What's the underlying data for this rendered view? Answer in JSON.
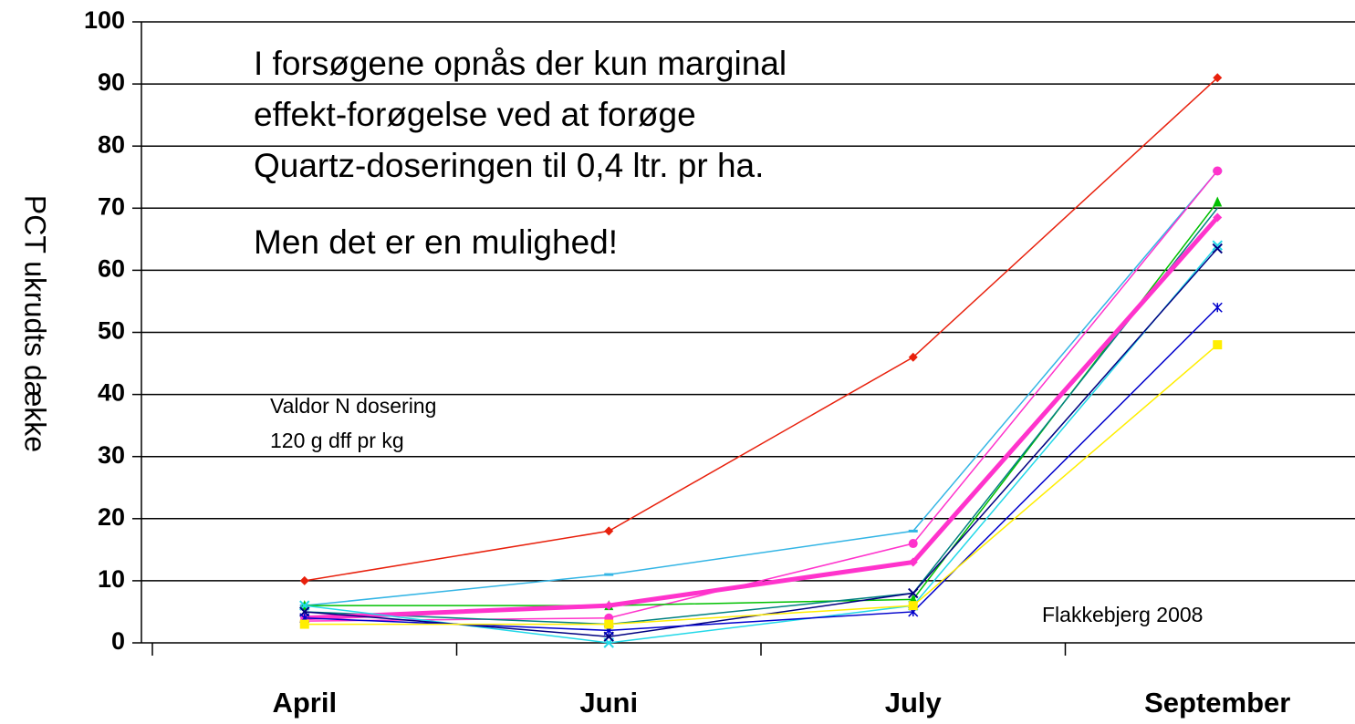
{
  "chart_data": {
    "type": "line",
    "y_label": "PCT ukrudts dække",
    "annotations": [
      "I forsøgene opnås der kun marginal",
      "effekt-forøgelse ved at forøge",
      "Quartz-doseringen til 0,4 ltr. pr ha.",
      "Men det er en mulighed!",
      "Valdor N dosering",
      "120 g dff pr kg",
      "Flakkebjerg 2008"
    ],
    "categories": [
      "April",
      "Juni",
      "July",
      "September"
    ],
    "ylim": [
      0,
      100
    ],
    "yticks": [
      0,
      10,
      20,
      30,
      40,
      50,
      60,
      70,
      80,
      90,
      100
    ],
    "grid": true,
    "series": [
      {
        "color": "#e8200c",
        "marker": "diamond",
        "width": 1.5,
        "values": [
          10,
          18,
          46,
          91
        ]
      },
      {
        "color": "#33b5e5",
        "marker": "dash",
        "width": 1.5,
        "values": [
          6,
          11,
          18,
          76
        ]
      },
      {
        "color": "#ff33cc",
        "marker": "circle",
        "width": 1.5,
        "values": [
          3.5,
          4,
          16,
          76
        ]
      },
      {
        "color": "#00c000",
        "marker": "triangle",
        "width": 1.5,
        "values": [
          6,
          6,
          7,
          71
        ]
      },
      {
        "color": "#008080",
        "marker": "none",
        "width": 1.5,
        "values": [
          5,
          3,
          8,
          70
        ]
      },
      {
        "color": "#ff33cc",
        "marker": "diamond",
        "width": 5,
        "values": [
          4,
          6,
          13,
          68.5
        ]
      },
      {
        "color": "#22d8e8",
        "marker": "x",
        "width": 1.5,
        "values": [
          6,
          0,
          6,
          64
        ]
      },
      {
        "color": "#000080",
        "marker": "x",
        "width": 1.5,
        "values": [
          5,
          1,
          8,
          63.5
        ]
      },
      {
        "color": "#0000cc",
        "marker": "asterisk",
        "width": 1.5,
        "values": [
          4,
          2,
          5,
          54
        ]
      },
      {
        "color": "#ffee00",
        "marker": "square",
        "width": 1.5,
        "values": [
          3,
          3,
          6,
          48
        ]
      }
    ]
  }
}
